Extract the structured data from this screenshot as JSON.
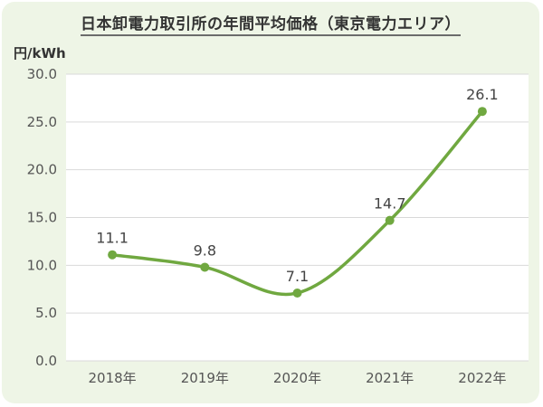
{
  "chart_data": {
    "type": "line",
    "title": "日本卸電力取引所の年間平均価格（東京電力エリア）",
    "ylabel": "円/kWh",
    "xlabel": "",
    "categories": [
      "2018年",
      "2019年",
      "2020年",
      "2021年",
      "2022年"
    ],
    "series": [
      {
        "values": [
          11.1,
          9.8,
          7.1,
          14.7,
          26.1
        ],
        "data_labels": [
          "11.1",
          "9.8",
          "7.1",
          "14.7",
          "26.1"
        ],
        "color": "#70a840"
      }
    ],
    "ylim": [
      0,
      30
    ],
    "yticks": [
      0,
      5,
      10,
      15,
      20,
      25,
      30
    ],
    "ytick_labels": [
      "0.0",
      "5.0",
      "10.0",
      "15.0",
      "20.0",
      "25.0",
      "30.0"
    ],
    "grid": true,
    "legend": "none",
    "smooth": true,
    "plot_background": "#ffffff",
    "background": "#eef5e6"
  }
}
